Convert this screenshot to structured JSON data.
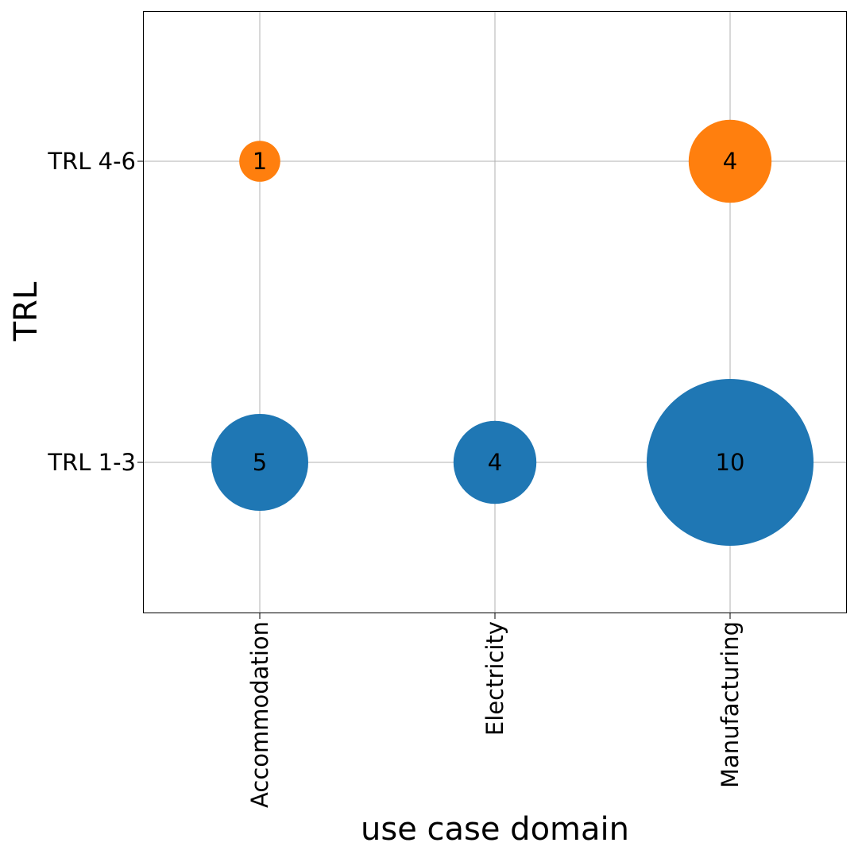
{
  "chart_data": {
    "type": "scatter",
    "title": "",
    "xlabel": "use case domain",
    "ylabel": "TRL",
    "categories": [
      "Accommodation",
      "Electricity",
      "Manufacturing"
    ],
    "y_categories": [
      "TRL 1-3",
      "TRL 4-6"
    ],
    "grid": true,
    "legend": "none",
    "series": [
      {
        "color": "#1f77b4",
        "points": [
          {
            "x": "Accommodation",
            "y": "TRL 1-3",
            "value": 5,
            "label": "5"
          },
          {
            "x": "Electricity",
            "y": "TRL 1-3",
            "value": 4,
            "label": "4"
          },
          {
            "x": "Manufacturing",
            "y": "TRL 1-3",
            "value": 10,
            "label": "10"
          }
        ]
      },
      {
        "color": "#ff7f0e",
        "points": [
          {
            "x": "Accommodation",
            "y": "TRL 4-6",
            "value": 1,
            "label": "1"
          },
          {
            "x": "Manufacturing",
            "y": "TRL 4-6",
            "value": 4,
            "label": "4"
          }
        ]
      }
    ]
  }
}
